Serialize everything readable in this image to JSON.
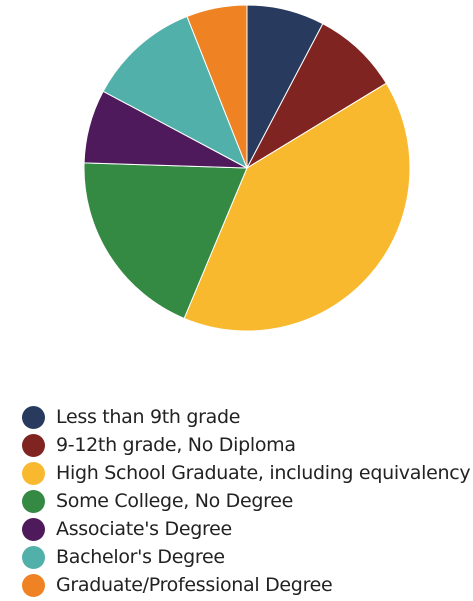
{
  "chart_data": {
    "type": "pie",
    "title": "",
    "start_angle_deg": 0,
    "direction": "clockwise",
    "legend_position": "bottom-left",
    "slices": [
      {
        "label": "Less than 9th grade",
        "value": 7.7,
        "color": "#283b5e"
      },
      {
        "label": "9-12th grade, No Diploma",
        "value": 8.6,
        "color": "#7f2420"
      },
      {
        "label": "High School Graduate, including equivalency",
        "value": 40.0,
        "color": "#f8b92e"
      },
      {
        "label": "Some College, No Degree",
        "value": 19.2,
        "color": "#348a43"
      },
      {
        "label": "Associate's Degree",
        "value": 7.3,
        "color": "#4e1a5c"
      },
      {
        "label": "Bachelor's Degree",
        "value": 11.2,
        "color": "#51b0aa"
      },
      {
        "label": "Graduate/Professional Degree",
        "value": 6.0,
        "color": "#ef8323"
      }
    ]
  }
}
